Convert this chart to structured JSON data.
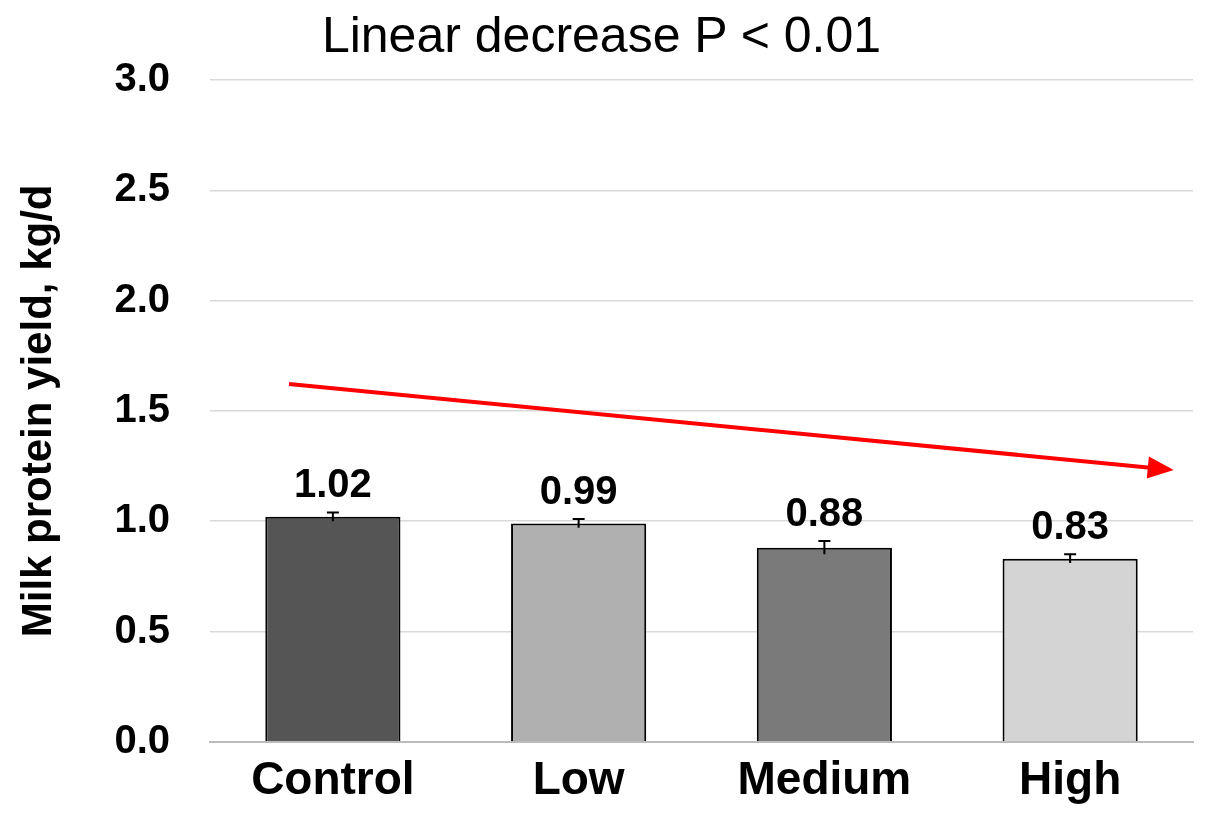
{
  "chart_data": {
    "type": "bar",
    "title": "Linear decrease P < 0.01",
    "ylabel": "Milk protein yield, kg/d",
    "categories": [
      "Control",
      "Low",
      "Medium",
      "High"
    ],
    "values": [
      1.02,
      0.99,
      0.88,
      0.83
    ],
    "colors": [
      "#555555",
      "#b0b0b0",
      "#7a7a7a",
      "#d4d4d4"
    ],
    "errors": [
      0.02,
      0.02,
      0.03,
      0.02
    ],
    "ylim": [
      0,
      3
    ],
    "yticks": [
      {
        "value": 0,
        "label": "0.0"
      },
      {
        "value": 0.5,
        "label": "0.5"
      },
      {
        "value": 1,
        "label": "1.0"
      },
      {
        "value": 1.5,
        "label": "1.5"
      },
      {
        "value": 2,
        "label": "2.0"
      },
      {
        "value": 2.5,
        "label": "2.5"
      },
      {
        "value": 3,
        "label": "3.0"
      }
    ],
    "grid": "y",
    "data_labels": true
  }
}
